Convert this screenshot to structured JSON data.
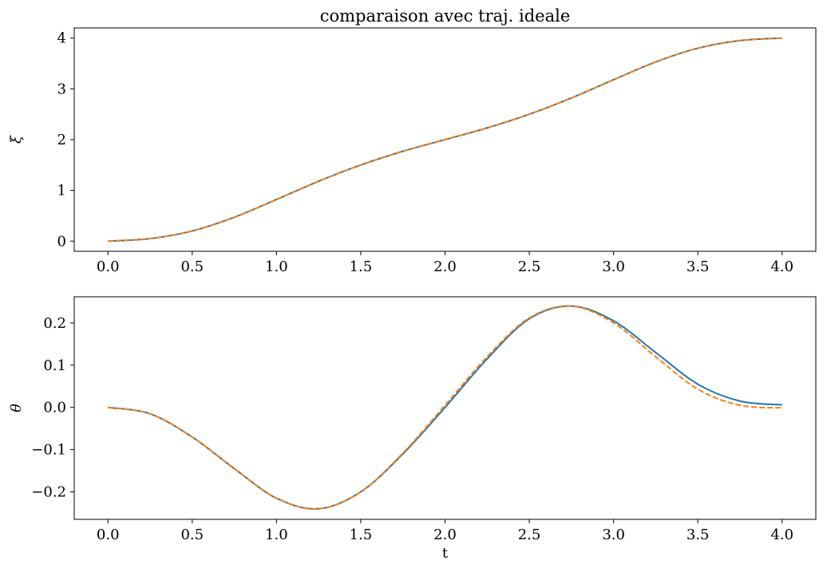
{
  "chart_data": [
    {
      "type": "line",
      "title": "comparaison avec traj. ideale",
      "xlabel": "",
      "ylabel": "ξ",
      "xlim": [
        -0.2,
        4.2
      ],
      "ylim": [
        -0.2,
        4.2
      ],
      "xticks": [
        0.0,
        0.5,
        1.0,
        1.5,
        2.0,
        2.5,
        3.0,
        3.5,
        4.0
      ],
      "xtick_labels": [
        "0.0",
        "0.5",
        "1.0",
        "1.5",
        "2.0",
        "2.5",
        "3.0",
        "3.5",
        "4.0"
      ],
      "yticks": [
        0,
        1,
        2,
        3,
        4
      ],
      "ytick_labels": [
        "0",
        "1",
        "2",
        "3",
        "4"
      ],
      "grid": false,
      "x": [
        0.0,
        0.25,
        0.5,
        0.75,
        1.0,
        1.25,
        1.5,
        1.75,
        2.0,
        2.25,
        2.5,
        2.75,
        3.0,
        3.25,
        3.5,
        3.75,
        4.0
      ],
      "series": [
        {
          "color": "#1f77b4",
          "style": "solid",
          "values": [
            0.0,
            0.05,
            0.2,
            0.47,
            0.82,
            1.18,
            1.5,
            1.77,
            2.0,
            2.23,
            2.5,
            2.82,
            3.18,
            3.53,
            3.8,
            3.95,
            4.0
          ]
        },
        {
          "color": "#ff7f0e",
          "style": "dashed",
          "values": [
            0.0,
            0.05,
            0.2,
            0.47,
            0.82,
            1.18,
            1.5,
            1.77,
            2.0,
            2.23,
            2.5,
            2.82,
            3.18,
            3.53,
            3.8,
            3.95,
            4.0
          ]
        }
      ]
    },
    {
      "type": "line",
      "title": "",
      "xlabel": "t",
      "ylabel": "θ",
      "xlim": [
        -0.2,
        4.2
      ],
      "ylim": [
        -0.265,
        0.262
      ],
      "xticks": [
        0.0,
        0.5,
        1.0,
        1.5,
        2.0,
        2.5,
        3.0,
        3.5,
        4.0
      ],
      "xtick_labels": [
        "0.0",
        "0.5",
        "1.0",
        "1.5",
        "2.0",
        "2.5",
        "3.0",
        "3.5",
        "4.0"
      ],
      "yticks": [
        -0.2,
        -0.1,
        0.0,
        0.1,
        0.2
      ],
      "ytick_labels": [
        "−0.2",
        "−0.1",
        "0.0",
        "0.1",
        "0.2"
      ],
      "grid": false,
      "x": [
        0.0,
        0.25,
        0.5,
        0.75,
        1.0,
        1.25,
        1.5,
        1.75,
        2.0,
        2.25,
        2.5,
        2.75,
        3.0,
        3.25,
        3.5,
        3.75,
        4.0
      ],
      "series": [
        {
          "color": "#1f77b4",
          "style": "solid",
          "values": [
            0.0,
            -0.015,
            -0.07,
            -0.145,
            -0.215,
            -0.24,
            -0.2,
            -0.11,
            0.0,
            0.115,
            0.21,
            0.24,
            0.205,
            0.13,
            0.055,
            0.015,
            0.006
          ]
        },
        {
          "color": "#ff7f0e",
          "style": "dashed",
          "values": [
            0.0,
            -0.015,
            -0.07,
            -0.145,
            -0.215,
            -0.24,
            -0.2,
            -0.108,
            0.005,
            0.12,
            0.212,
            0.24,
            0.2,
            0.12,
            0.043,
            0.005,
            -0.001
          ]
        }
      ]
    }
  ]
}
